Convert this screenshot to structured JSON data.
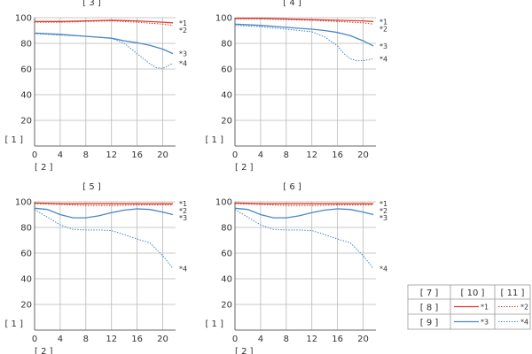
{
  "chart_data": [
    {
      "type": "line",
      "title": "[ 3 ]",
      "xlabel": "[ 2 ]",
      "ylabel": "[ 1 ]",
      "xlim": [
        0,
        22
      ],
      "ylim": [
        0,
        100
      ],
      "xticks": [
        0,
        4,
        8,
        12,
        16,
        20
      ],
      "yticks": [
        20,
        40,
        60,
        80,
        100
      ],
      "grid": true,
      "series": [
        {
          "name": "*1",
          "color": "#d83c2c",
          "style": "solid",
          "x": [
            0,
            4,
            8,
            12,
            16,
            20,
            21.6
          ],
          "y": [
            97,
            97,
            97.5,
            98,
            97.5,
            96.5,
            96
          ]
        },
        {
          "name": "*2",
          "color": "#d83c2c",
          "style": "dotted",
          "x": [
            0,
            4,
            8,
            12,
            16,
            20,
            21.6
          ],
          "y": [
            96.5,
            96.5,
            97,
            97.5,
            96.5,
            95,
            94
          ]
        },
        {
          "name": "*3",
          "color": "#4a86c5",
          "style": "solid",
          "x": [
            0,
            4,
            8,
            12,
            14,
            16,
            18,
            20,
            21.6
          ],
          "y": [
            88,
            87,
            85.5,
            84,
            82,
            80.5,
            78.5,
            75.5,
            72
          ]
        },
        {
          "name": "*4",
          "color": "#4a86c5",
          "style": "dotted",
          "x": [
            0,
            4,
            8,
            12,
            14,
            16,
            18,
            19,
            20,
            21.6
          ],
          "y": [
            87.5,
            86.5,
            85.5,
            84,
            80,
            72,
            64,
            61,
            60.5,
            64.5
          ]
        }
      ]
    },
    {
      "type": "line",
      "title": "[ 4 ]",
      "xlabel": "[ 2 ]",
      "ylabel": "[ 1 ]",
      "xlim": [
        0,
        22
      ],
      "ylim": [
        0,
        100
      ],
      "xticks": [
        0,
        4,
        8,
        12,
        16,
        20
      ],
      "yticks": [
        20,
        40,
        60,
        80,
        100
      ],
      "grid": true,
      "series": [
        {
          "name": "*1",
          "color": "#d83c2c",
          "style": "solid",
          "x": [
            0,
            4,
            8,
            12,
            16,
            20,
            21.6
          ],
          "y": [
            99.5,
            99.5,
            99,
            98.5,
            98,
            97.5,
            97
          ]
        },
        {
          "name": "*2",
          "color": "#d83c2c",
          "style": "dotted",
          "x": [
            0,
            4,
            8,
            12,
            16,
            20,
            21.6
          ],
          "y": [
            99,
            99,
            98.5,
            98,
            97,
            96,
            95
          ]
        },
        {
          "name": "*3",
          "color": "#4a86c5",
          "style": "solid",
          "x": [
            0,
            4,
            8,
            12,
            14,
            16,
            18,
            20,
            21.6
          ],
          "y": [
            95,
            94,
            92.5,
            91,
            90,
            88.5,
            86,
            82,
            78
          ]
        },
        {
          "name": "*4",
          "color": "#4a86c5",
          "style": "dotted",
          "x": [
            0,
            4,
            8,
            12,
            14,
            16,
            17,
            18,
            19,
            20,
            21.6
          ],
          "y": [
            94,
            93,
            91,
            89,
            85,
            78,
            72,
            68,
            66.5,
            66.5,
            68
          ]
        }
      ]
    },
    {
      "type": "line",
      "title": "[ 5 ]",
      "xlabel": "[ 2 ]",
      "ylabel": "[ 1 ]",
      "xlim": [
        0,
        22
      ],
      "ylim": [
        0,
        100
      ],
      "xticks": [
        0,
        4,
        8,
        12,
        16,
        20
      ],
      "yticks": [
        20,
        40,
        60,
        80,
        100
      ],
      "grid": true,
      "series": [
        {
          "name": "*1",
          "color": "#d83c2c",
          "style": "solid",
          "x": [
            0,
            4,
            8,
            12,
            16,
            20,
            21.6
          ],
          "y": [
            99,
            98.5,
            98.5,
            98.5,
            98.5,
            98.5,
            98.5
          ]
        },
        {
          "name": "*2",
          "color": "#d83c2c",
          "style": "dotted",
          "x": [
            0,
            4,
            8,
            12,
            16,
            20,
            21.6
          ],
          "y": [
            98.5,
            98,
            97,
            97,
            97.5,
            97.5,
            97.5
          ]
        },
        {
          "name": "*3",
          "color": "#4a86c5",
          "style": "solid",
          "x": [
            0,
            2,
            4,
            6,
            8,
            10,
            12,
            14,
            16,
            18,
            20,
            21.6
          ],
          "y": [
            95,
            94,
            90,
            87.5,
            87.5,
            89,
            91.5,
            93.5,
            94.5,
            94,
            92,
            90
          ]
        },
        {
          "name": "*4",
          "color": "#4a86c5",
          "style": "dotted",
          "x": [
            0,
            2,
            4,
            6,
            8,
            10,
            12,
            14,
            16,
            18,
            20,
            21.6
          ],
          "y": [
            94,
            88,
            82,
            78.5,
            78,
            78,
            77.5,
            74.5,
            71,
            68,
            58,
            48
          ]
        }
      ]
    },
    {
      "type": "line",
      "title": "[ 6 ]",
      "xlabel": "[ 2 ]",
      "ylabel": "[ 1 ]",
      "xlim": [
        0,
        22
      ],
      "ylim": [
        0,
        100
      ],
      "xticks": [
        0,
        4,
        8,
        12,
        16,
        20
      ],
      "yticks": [
        20,
        40,
        60,
        80,
        100
      ],
      "grid": true,
      "series": [
        {
          "name": "*1",
          "color": "#d83c2c",
          "style": "solid",
          "x": [
            0,
            4,
            8,
            12,
            16,
            20,
            21.6
          ],
          "y": [
            99,
            98.5,
            98.5,
            98.5,
            98.5,
            98.5,
            98.5
          ]
        },
        {
          "name": "*2",
          "color": "#d83c2c",
          "style": "dotted",
          "x": [
            0,
            4,
            8,
            12,
            16,
            20,
            21.6
          ],
          "y": [
            98.5,
            98,
            97,
            97,
            97.5,
            97.5,
            97.5
          ]
        },
        {
          "name": "*3",
          "color": "#4a86c5",
          "style": "solid",
          "x": [
            0,
            2,
            4,
            6,
            8,
            10,
            12,
            14,
            16,
            18,
            20,
            21.6
          ],
          "y": [
            95,
            94,
            90,
            87.5,
            87.5,
            89,
            91.5,
            93.5,
            94.5,
            94,
            92,
            90
          ]
        },
        {
          "name": "*4",
          "color": "#4a86c5",
          "style": "dotted",
          "x": [
            0,
            2,
            4,
            6,
            8,
            10,
            12,
            14,
            16,
            18,
            20,
            21.6
          ],
          "y": [
            94,
            88,
            82,
            78.5,
            78,
            78,
            77.5,
            74.5,
            71,
            68,
            58,
            48
          ]
        }
      ]
    }
  ],
  "legend": {
    "header": [
      "[ 7 ]",
      "[ 10 ]",
      "[ 11 ]"
    ],
    "rows": [
      {
        "label": "[ 8 ]",
        "solid": {
          "name": "*1",
          "color": "#d83c2c"
        },
        "dotted": {
          "name": "*2",
          "color": "#d83c2c"
        }
      },
      {
        "label": "[ 9 ]",
        "solid": {
          "name": "*3",
          "color": "#4a86c5"
        },
        "dotted": {
          "name": "*4",
          "color": "#4a86c5"
        }
      }
    ],
    "border_color": "#999999"
  },
  "colors": {
    "grid": "#b8b8b8",
    "axis": "#666666",
    "text": "#333333"
  }
}
